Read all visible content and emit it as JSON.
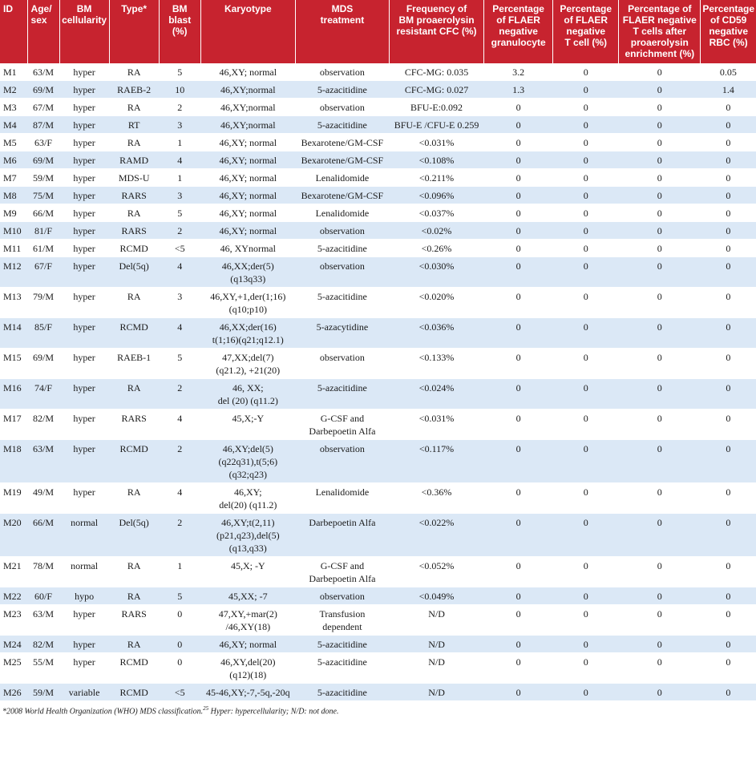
{
  "headers": [
    "ID",
    "Age/\nsex",
    "BM\ncellularity",
    "Type*",
    "BM blast\n(%)",
    "Karyotype",
    "MDS\ntreatment",
    "Frequency of\nBM proaerolysin\nresistant CFC (%)",
    "Percentage\nof FLAER\nnegative\ngranulocyte",
    "Percentage\nof FLAER\nnegative\nT cell (%)",
    "Percentage of\nFLAER negative\nT cells after\nproaerolysin\nenrichment (%)",
    "Percentage\nof CD59\nnegative\nRBC (%)"
  ],
  "rows": [
    [
      "M1",
      "63/M",
      "hyper",
      "RA",
      "5",
      "46,XY; normal",
      "observation",
      "CFC-MG: 0.035",
      "3.2",
      "0",
      "0",
      "0.05"
    ],
    [
      "M2",
      "69/M",
      "hyper",
      "RAEB-2",
      "10",
      "46,XY;normal",
      "5-azacitidine",
      "CFC-MG: 0.027",
      "1.3",
      "0",
      "0",
      "1.4"
    ],
    [
      "M3",
      "67/M",
      "hyper",
      "RA",
      "2",
      "46,XY;normal",
      "observation",
      "BFU-E:0.092",
      "0",
      "0",
      "0",
      "0"
    ],
    [
      "M4",
      "87/M",
      "hyper",
      "RT",
      "3",
      "46,XY;normal",
      "5-azacitidine",
      "BFU-E /CFU-E 0.259",
      "0",
      "0",
      "0",
      "0"
    ],
    [
      "M5",
      "63/F",
      "hyper",
      "RA",
      "1",
      "46,XY; normal",
      "Bexarotene/GM-CSF",
      "<0.031%",
      "0",
      "0",
      "0",
      "0"
    ],
    [
      "M6",
      "69/M",
      "hyper",
      "RAMD",
      "4",
      "46,XY; normal",
      "Bexarotene/GM-CSF",
      "<0.108%",
      "0",
      "0",
      "0",
      "0"
    ],
    [
      "M7",
      "59/M",
      "hyper",
      "MDS-U",
      "1",
      "46,XY; normal",
      "Lenalidomide",
      "<0.211%",
      "0",
      "0",
      "0",
      "0"
    ],
    [
      "M8",
      "75/M",
      "hyper",
      "RARS",
      "3",
      "46,XY; normal",
      "Bexarotene/GM-CSF",
      "<0.096%",
      "0",
      "0",
      "0",
      "0"
    ],
    [
      "M9",
      "66/M",
      "hyper",
      "RA",
      "5",
      "46,XY; normal",
      "Lenalidomide",
      "<0.037%",
      "0",
      "0",
      "0",
      "0"
    ],
    [
      "M10",
      "81/F",
      "hyper",
      "RARS",
      "2",
      "46,XY; normal",
      "observation",
      "<0.02%",
      "0",
      "0",
      "0",
      "0"
    ],
    [
      "M11",
      "61/M",
      "hyper",
      "RCMD",
      "<5",
      "46, XYnormal",
      "5-azacitidine",
      "<0.26%",
      "0",
      "0",
      "0",
      "0"
    ],
    [
      "M12",
      "67/F",
      "hyper",
      "Del(5q)",
      "4",
      "46,XX;der(5)\n(q13q33)",
      "observation",
      "<0.030%",
      "0",
      "0",
      "0",
      "0"
    ],
    [
      "M13",
      "79/M",
      "hyper",
      "RA",
      "3",
      "46,XY,+1,der(1;16)\n(q10;p10)",
      "5-azacitidine",
      "<0.020%",
      "0",
      "0",
      "0",
      "0"
    ],
    [
      "M14",
      "85/F",
      "hyper",
      "RCMD",
      "4",
      "46,XX;der(16)\nt(1;16)(q21;q12.1)",
      "5-azacytidine",
      "<0.036%",
      "0",
      "0",
      "0",
      "0"
    ],
    [
      "M15",
      "69/M",
      "hyper",
      "RAEB-1",
      "5",
      "47,XX;del(7)\n(q21.2), +21(20)",
      "observation",
      "<0.133%",
      "0",
      "0",
      "0",
      "0"
    ],
    [
      "M16",
      "74/F",
      "hyper",
      "RA",
      "2",
      "46, XX;\ndel (20) (q11.2)",
      "5-azacitidine",
      "<0.024%",
      "0",
      "0",
      "0",
      "0"
    ],
    [
      "M17",
      "82/M",
      "hyper",
      "RARS",
      "4",
      "45,X;-Y",
      "G-CSF and\nDarbepoetin Alfa",
      "<0.031%",
      "0",
      "0",
      "0",
      "0"
    ],
    [
      "M18",
      "63/M",
      "hyper",
      "RCMD",
      "2",
      "46,XY;del(5)\n(q22q31),t(5;6)\n(q32;q23)",
      "observation",
      "<0.117%",
      "0",
      "0",
      "0",
      "0"
    ],
    [
      "M19",
      "49/M",
      "hyper",
      "RA",
      "4",
      "46,XY;\ndel(20) (q11.2)",
      "Lenalidomide",
      "<0.36%",
      "0",
      "0",
      "0",
      "0"
    ],
    [
      "M20",
      "66/M",
      "normal",
      "Del(5q)",
      "2",
      "46,XY;t(2,11)\n(p21,q23),del(5)\n(q13,q33)",
      "Darbepoetin Alfa",
      "<0.022%",
      "0",
      "0",
      "0",
      "0"
    ],
    [
      "M21",
      "78/M",
      "normal",
      "RA",
      "1",
      "45,X; -Y",
      "G-CSF and\nDarbepoetin Alfa",
      "<0.052%",
      "0",
      "0",
      "0",
      "0"
    ],
    [
      "M22",
      "60/F",
      "hypo",
      "RA",
      "5",
      "45,XX; -7",
      "observation",
      "<0.049%",
      "0",
      "0",
      "0",
      "0"
    ],
    [
      "M23",
      "63/M",
      "hyper",
      "RARS",
      "0",
      "47,XY,+mar(2)\n/46,XY(18)",
      "Transfusion\ndependent",
      "N/D",
      "0",
      "0",
      "0",
      "0"
    ],
    [
      "M24",
      "82/M",
      "hyper",
      "RA",
      "0",
      "46,XY; normal",
      "5-azacitidine",
      "N/D",
      "0",
      "0",
      "0",
      "0"
    ],
    [
      "M25",
      "55/M",
      "hyper",
      "RCMD",
      "0",
      "46,XY,del(20)\n(q12)(18)",
      "5-azacitidine",
      "N/D",
      "0",
      "0",
      "0",
      "0"
    ],
    [
      "M26",
      "59/M",
      "variable",
      "RCMD",
      "<5",
      "45-46,XY;-7,-5q,-20q",
      "5-azacitidine",
      "N/D",
      "0",
      "0",
      "0",
      "0"
    ]
  ],
  "footnote": {
    "text_a": "*2008 World Health Organization (WHO) MDS classification.",
    "sup": "25",
    "text_b": " Hyper: hypercellularity; N/D: not done."
  }
}
